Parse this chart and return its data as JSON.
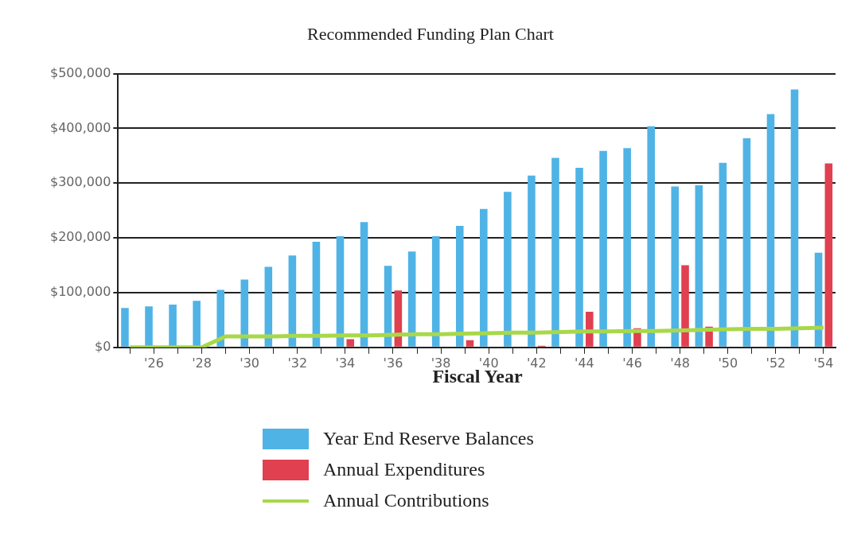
{
  "chart_data": {
    "type": "bar",
    "title": "Recommended Funding Plan Chart",
    "xlabel": "Fiscal Year",
    "categories": [
      null,
      "'26",
      null,
      "'28",
      null,
      "'30",
      null,
      "'32",
      null,
      "'34",
      null,
      "'36",
      null,
      "'38",
      null,
      "'40",
      null,
      "'42",
      null,
      "'44",
      null,
      "'46",
      null,
      "'48",
      null,
      "'50",
      null,
      "'52",
      null,
      "'54"
    ],
    "series": [
      {
        "name": "Year End Reserve Balances",
        "color": "#4fb3e6",
        "values": [
          72000,
          75000,
          78000,
          85000,
          105000,
          124000,
          147000,
          168000,
          193000,
          203000,
          229000,
          149000,
          175000,
          203000,
          222000,
          253000,
          284000,
          314000,
          346000,
          328000,
          359000,
          364000,
          404000,
          294000,
          296000,
          337000,
          382000,
          426000,
          471000,
          173000
        ]
      },
      {
        "name": "Annual Expenditures",
        "color": "#e0404f",
        "values": [
          0,
          0,
          0,
          0,
          0,
          0,
          0,
          0,
          0,
          15000,
          0,
          104000,
          0,
          0,
          13000,
          0,
          0,
          3000,
          0,
          65000,
          0,
          35000,
          0,
          150000,
          38000,
          0,
          0,
          0,
          0,
          336000
        ]
      },
      {
        "name": "Annual Contributions",
        "type": "line",
        "color": "#a8d84a",
        "values": [
          0,
          0,
          0,
          0,
          20000,
          20000,
          20000,
          21000,
          21000,
          22000,
          22000,
          23000,
          24000,
          24000,
          25000,
          26000,
          27000,
          27000,
          28000,
          29000,
          29000,
          30000,
          30000,
          31000,
          32000,
          33000,
          34000,
          34000,
          35000,
          36000
        ]
      }
    ],
    "ylim": [
      0,
      500000
    ],
    "yticks": [
      {
        "value": 0,
        "label": "$0"
      },
      {
        "value": 100000,
        "label": "$100,000"
      },
      {
        "value": 200000,
        "label": "$200,000"
      },
      {
        "value": 300000,
        "label": "$300,000"
      },
      {
        "value": 400000,
        "label": "$400,000"
      },
      {
        "value": 500000,
        "label": "$500,000"
      }
    ],
    "grid": "y",
    "legend": "bottom",
    "marker": "none"
  }
}
